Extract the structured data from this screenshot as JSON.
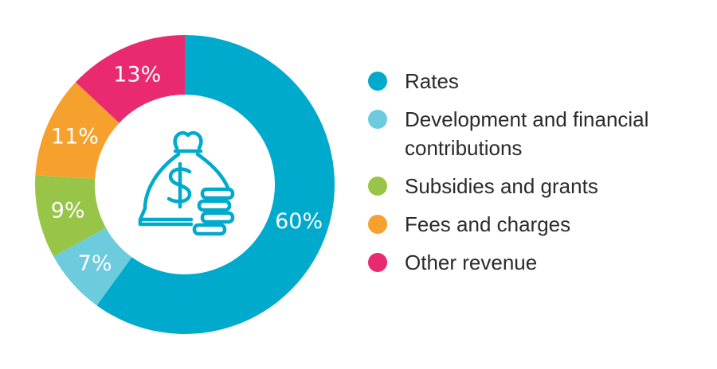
{
  "chart_data": {
    "type": "pie",
    "donut": true,
    "title": "",
    "center_icon": "money-bag-coins-icon",
    "legend_position": "right",
    "slices": [
      {
        "name": "Rates",
        "value": 60,
        "label": "60%",
        "color": "#00aacc"
      },
      {
        "name": "Development and financial contributions",
        "value": 7,
        "label": "7%",
        "color": "#6ccbdd"
      },
      {
        "name": "Subsidies and grants",
        "value": 9,
        "label": "9%",
        "color": "#98c548"
      },
      {
        "name": "Fees and charges",
        "value": 11,
        "label": "11%",
        "color": "#f6a12d"
      },
      {
        "name": "Other revenue",
        "value": 13,
        "label": "13%",
        "color": "#ea2a70"
      }
    ]
  },
  "legend": {
    "items": [
      {
        "text": "Rates",
        "color": "#00aacc"
      },
      {
        "text": "Development and financial contributions",
        "color": "#6ccbdd"
      },
      {
        "text": "Subsidies and grants",
        "color": "#98c548"
      },
      {
        "text": "Fees and charges",
        "color": "#f6a12d"
      },
      {
        "text": "Other revenue",
        "color": "#ea2a70"
      }
    ]
  }
}
